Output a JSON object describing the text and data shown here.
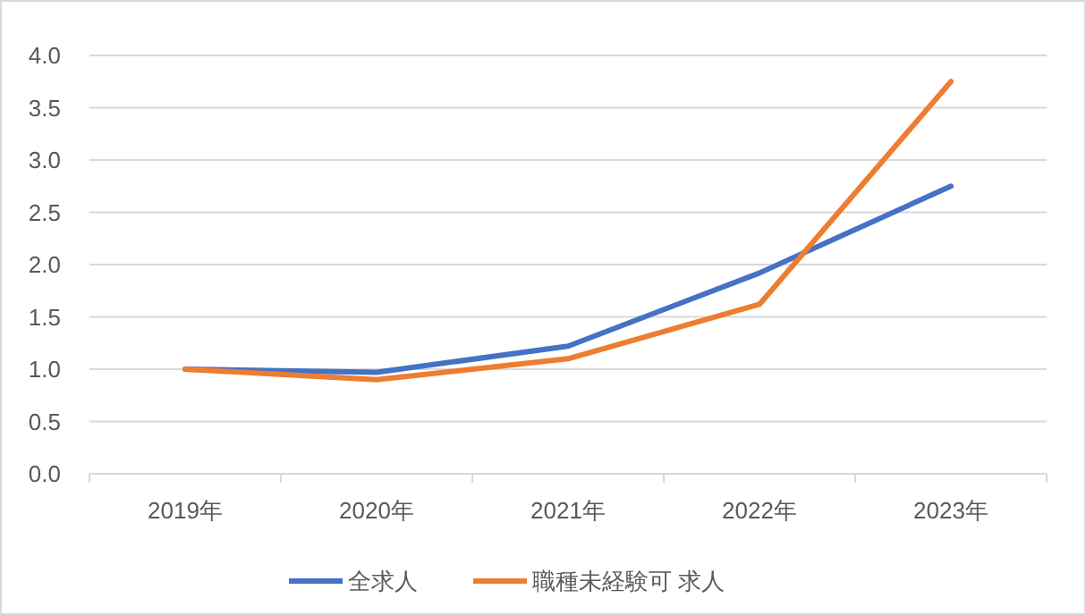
{
  "chart_data": {
    "type": "line",
    "categories": [
      "2019年",
      "2020年",
      "2021年",
      "2022年",
      "2023年"
    ],
    "series": [
      {
        "name": "全求人",
        "color": "#4472c4",
        "values": [
          1.0,
          0.97,
          1.22,
          1.92,
          2.75
        ]
      },
      {
        "name": "職種未経験可 求人",
        "color": "#ed7d31",
        "values": [
          1.0,
          0.9,
          1.1,
          1.62,
          3.75
        ]
      }
    ],
    "ylim": [
      0,
      4
    ],
    "yticks": [
      {
        "value": 0,
        "label": "0.0"
      },
      {
        "value": 0.5,
        "label": "0.5"
      },
      {
        "value": 1,
        "label": "1.0"
      },
      {
        "value": 1.5,
        "label": "1.5"
      },
      {
        "value": 2,
        "label": "2.0"
      },
      {
        "value": 2.5,
        "label": "2.5"
      },
      {
        "value": 3,
        "label": "3.0"
      },
      {
        "value": 3.5,
        "label": "3.5"
      },
      {
        "value": 4,
        "label": "4.0"
      }
    ],
    "grid": "y",
    "legend": "bottom",
    "marker": "none",
    "line_style": "solid"
  }
}
